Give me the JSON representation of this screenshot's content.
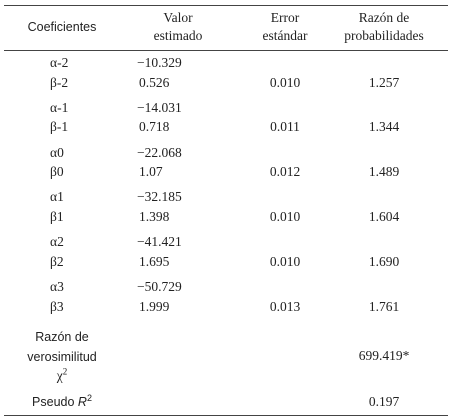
{
  "table": {
    "headers": [
      [
        "Coeficientes"
      ],
      [
        "Valor",
        "estimado"
      ],
      [
        "Error",
        "estándar"
      ],
      [
        "Razón de",
        "probabilidades"
      ]
    ],
    "rows": [
      {
        "alpha": "α-2",
        "alpha_value": "−10.329",
        "beta": "β-2",
        "beta_value": "0.526",
        "error": "0.010",
        "ratio": "1.257"
      },
      {
        "alpha": "α-1",
        "alpha_value": "−14.031",
        "beta": "β-1",
        "beta_value": "0.718",
        "error": "0.011",
        "ratio": "1.344"
      },
      {
        "alpha": "α0",
        "alpha_value": "−22.068",
        "beta": "β0",
        "beta_value": "1.07",
        "error": "0.012",
        "ratio": "1.489"
      },
      {
        "alpha": "α1",
        "alpha_value": "−32.185",
        "beta": "β1",
        "beta_value": "1.398",
        "error": "0.010",
        "ratio": "1.604"
      },
      {
        "alpha": "α2",
        "alpha_value": "−41.421",
        "beta": "β2",
        "beta_value": "1.695",
        "error": "0.010",
        "ratio": "1.690"
      },
      {
        "alpha": "α3",
        "alpha_value": "−50.729",
        "beta": "β3",
        "beta_value": "1.999",
        "error": "0.013",
        "ratio": "1.761"
      }
    ],
    "likelihood": {
      "label_lines": [
        "Razón de",
        "verosimilitud"
      ],
      "symbol": "χ",
      "symbol_sup": "2",
      "value": "699.419*"
    },
    "pseudo": {
      "label": "Pseudo",
      "symbol": "R",
      "symbol_sup": "2",
      "value": "0.197"
    }
  }
}
